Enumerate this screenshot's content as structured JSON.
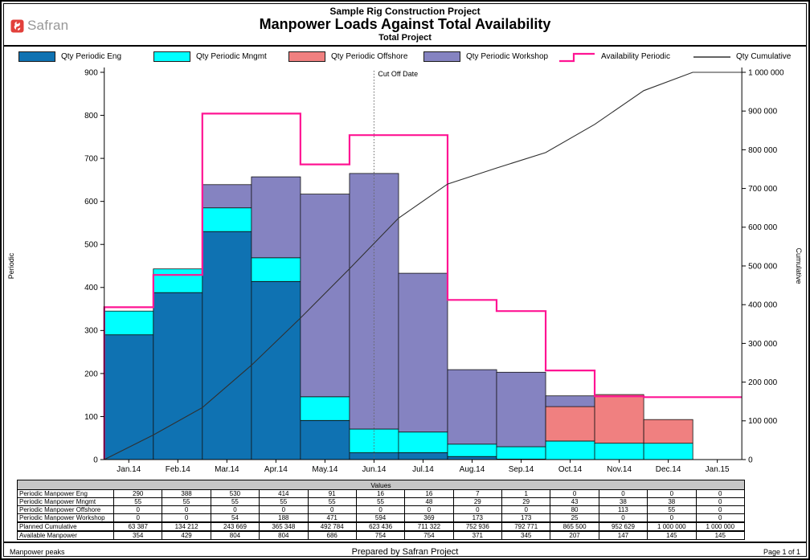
{
  "header": {
    "logo_text": "Safran",
    "title": "Sample Rig Construction Project",
    "subtitle": "Manpower Loads Against Total Availability",
    "subsubtitle": "Total Project"
  },
  "legend": {
    "items": [
      {
        "label": "Qty Periodic Eng",
        "glyph": "box",
        "color": "#0f72b2"
      },
      {
        "label": "Qty Periodic Mngmt",
        "glyph": "box",
        "color": "#00ffff"
      },
      {
        "label": "Qty Periodic Offshore",
        "glyph": "box",
        "color": "#f08080"
      },
      {
        "label": "Qty Periodic Workshop",
        "glyph": "box",
        "color": "#8583c1"
      },
      {
        "label": "Availability Periodic",
        "glyph": "step-line",
        "color": "#ff1493"
      },
      {
        "label": "Qty Cumulative",
        "glyph": "line",
        "color": "#303030"
      }
    ]
  },
  "chart_data": {
    "type": "bar",
    "subtype": "stacked bars + step availability line (left axis) + cumulative line (right axis)",
    "title": "Manpower Loads Against Total Availability",
    "categories": [
      "Jan.14",
      "Feb.14",
      "Mar.14",
      "Apr.14",
      "May.14",
      "Jun.14",
      "Jul.14",
      "Aug.14",
      "Sep.14",
      "Oct.14",
      "Nov.14",
      "Dec.14",
      "Jan.15"
    ],
    "series": [
      {
        "name": "Qty Periodic Eng",
        "type": "bar",
        "stack": true,
        "axis": "left",
        "color": "#0f72b2",
        "values": [
          290,
          388,
          530,
          414,
          91,
          16,
          16,
          7,
          1,
          0,
          0,
          0,
          0
        ]
      },
      {
        "name": "Qty Periodic Mngmt",
        "type": "bar",
        "stack": true,
        "axis": "left",
        "color": "#00ffff",
        "values": [
          55,
          55,
          55,
          55,
          55,
          55,
          48,
          29,
          29,
          43,
          38,
          38,
          0
        ]
      },
      {
        "name": "Qty Periodic Offshore",
        "type": "bar",
        "stack": true,
        "axis": "left",
        "color": "#f08080",
        "values": [
          0,
          0,
          0,
          0,
          0,
          0,
          0,
          0,
          0,
          80,
          113,
          55,
          0
        ]
      },
      {
        "name": "Qty Periodic Workshop",
        "type": "bar",
        "stack": true,
        "axis": "left",
        "color": "#8583c1",
        "values": [
          0,
          0,
          54,
          188,
          471,
          594,
          369,
          173,
          173,
          25,
          0,
          0,
          0
        ]
      },
      {
        "name": "Availability Periodic",
        "type": "step-line",
        "axis": "left",
        "color": "#ff1493",
        "values": [
          354,
          429,
          804,
          804,
          686,
          754,
          754,
          371,
          345,
          207,
          147,
          145,
          145
        ]
      },
      {
        "name": "Qty Cumulative",
        "type": "line",
        "axis": "right",
        "color": "#303030",
        "values": [
          63387,
          134212,
          243669,
          365348,
          492784,
          623436,
          711322,
          752936,
          792771,
          865500,
          952629,
          1000000,
          1000000
        ]
      }
    ],
    "left_axis": {
      "label": "Periodic",
      "min": 0,
      "max": 900,
      "step": 100
    },
    "right_axis": {
      "label": "Cumulative",
      "min": 0,
      "max": 1000000,
      "step": 100000
    },
    "cutoff": {
      "label": "Cut Off Date",
      "month_index": 5.5
    },
    "legend_position": "top",
    "grid": false
  },
  "table": {
    "header_label": "Values",
    "rows": [
      {
        "label": "Periodic Manpower Eng",
        "values": [
          290,
          388,
          530,
          414,
          91,
          16,
          16,
          7,
          1,
          0,
          0,
          0,
          0
        ]
      },
      {
        "label": "Periodic Manpower Mngmt",
        "values": [
          55,
          55,
          55,
          55,
          55,
          55,
          48,
          29,
          29,
          43,
          38,
          38,
          0
        ]
      },
      {
        "label": "Periodic Manpower Offshore",
        "values": [
          0,
          0,
          0,
          0,
          0,
          0,
          0,
          0,
          0,
          80,
          113,
          55,
          0
        ]
      },
      {
        "label": "Periodic Manpower Workshop",
        "values": [
          0,
          0,
          54,
          188,
          471,
          594,
          369,
          173,
          173,
          25,
          0,
          0,
          0
        ]
      },
      {
        "label": "Planned Cumulative",
        "values": [
          63387,
          134212,
          243669,
          365348,
          492784,
          623436,
          711322,
          752936,
          792771,
          865500,
          952629,
          1000000,
          1000000
        ]
      },
      {
        "label": "Available Manpower",
        "values": [
          354,
          429,
          804,
          804,
          686,
          754,
          754,
          371,
          345,
          207,
          147,
          145,
          145
        ]
      }
    ]
  },
  "footer": {
    "left": "Manpower peaks",
    "center": "Prepared by Safran Project",
    "right": "Page 1 of 1"
  },
  "colors": {
    "availability": "#ff1493",
    "cumulative": "#303030",
    "table_header_bg": "#c6c6c6",
    "logo_red": "#e2403b",
    "logo_gray": "#979797"
  }
}
